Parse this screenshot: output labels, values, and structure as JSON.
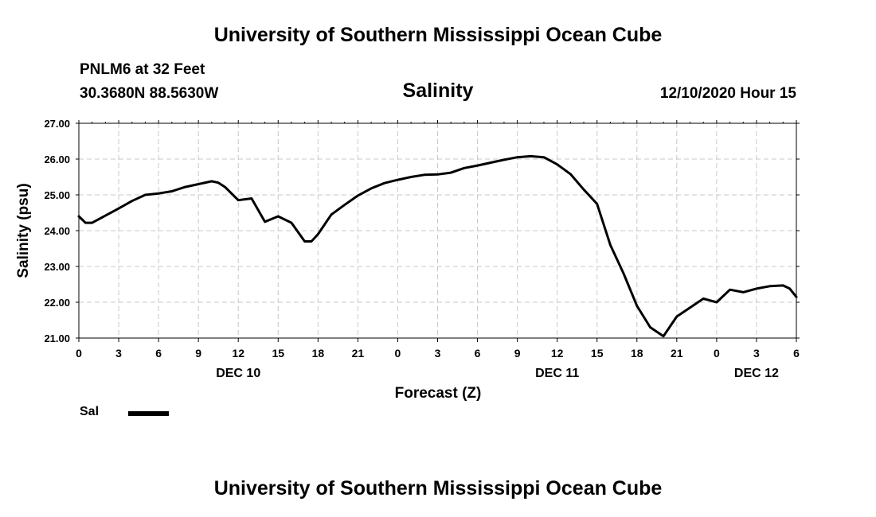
{
  "header": {
    "title": "University of Southern Mississippi Ocean Cube",
    "station": "PNLM6 at 32 Feet",
    "coordinates": "30.3680N 88.5630W",
    "parameter": "Salinity",
    "issued": "12/10/2020 Hour 15"
  },
  "footer": {
    "title": "University of Southern Mississippi Ocean Cube"
  },
  "legend": {
    "label": "Sal",
    "color": "#000000"
  },
  "chart_data": {
    "type": "line",
    "title": "Salinity",
    "xlabel": "Forecast (Z)",
    "ylabel": "Salinity (psu)",
    "xlim": [
      0,
      54
    ],
    "ylim": [
      21.0,
      27.0
    ],
    "grid": true,
    "x_ticks": [
      0,
      3,
      6,
      9,
      12,
      15,
      18,
      21,
      24,
      27,
      30,
      33,
      36,
      39,
      42,
      45,
      48,
      51,
      54
    ],
    "x_tick_labels": [
      "0",
      "3",
      "6",
      "9",
      "12",
      "15",
      "18",
      "21",
      "0",
      "3",
      "6",
      "9",
      "12",
      "15",
      "18",
      "21",
      "0",
      "3",
      "6"
    ],
    "y_ticks": [
      21.0,
      22.0,
      23.0,
      24.0,
      25.0,
      26.0,
      27.0
    ],
    "y_tick_labels": [
      "21.00",
      "22.00",
      "23.00",
      "24.00",
      "25.00",
      "26.00",
      "27.00"
    ],
    "date_labels": [
      {
        "x": 12,
        "label": "DEC 10"
      },
      {
        "x": 36,
        "label": "DEC 11"
      },
      {
        "x": 51,
        "label": "DEC 12"
      }
    ],
    "series": [
      {
        "name": "Sal",
        "x": [
          0,
          0.5,
          1,
          2,
          3,
          4,
          5,
          6,
          7,
          8,
          9,
          10,
          10.5,
          11,
          12,
          13,
          14,
          15,
          16,
          17,
          17.5,
          18,
          19,
          20,
          21,
          22,
          23,
          24,
          25,
          26,
          27,
          28,
          29,
          30,
          31,
          32,
          33,
          34,
          35,
          36,
          37,
          38,
          39,
          40,
          41,
          42,
          43,
          44,
          45,
          46,
          47,
          48,
          49,
          50,
          51,
          52,
          53,
          53.5,
          54
        ],
        "y": [
          24.4,
          24.22,
          24.22,
          24.42,
          24.62,
          24.83,
          25.0,
          25.04,
          25.1,
          25.22,
          25.3,
          25.38,
          25.34,
          25.22,
          24.85,
          24.9,
          24.25,
          24.4,
          24.22,
          23.7,
          23.7,
          23.9,
          24.45,
          24.72,
          24.98,
          25.18,
          25.33,
          25.42,
          25.5,
          25.56,
          25.57,
          25.62,
          25.75,
          25.82,
          25.9,
          25.98,
          26.05,
          26.08,
          26.05,
          25.85,
          25.58,
          25.15,
          24.75,
          23.6,
          22.8,
          21.9,
          21.3,
          21.05,
          21.6,
          21.85,
          22.1,
          22.0,
          22.35,
          22.28,
          22.38,
          22.45,
          22.47,
          22.38,
          22.15
        ]
      }
    ]
  }
}
